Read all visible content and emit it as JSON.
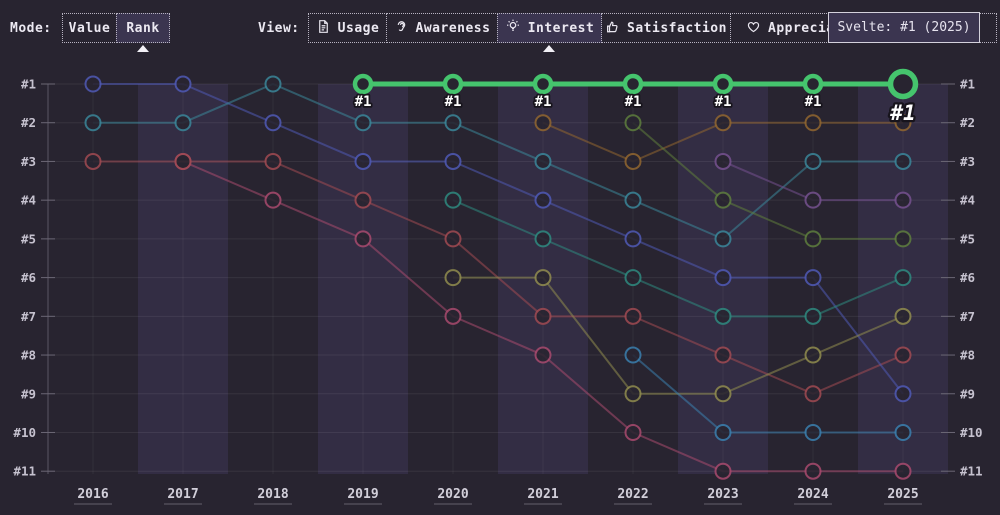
{
  "toolbar": {
    "mode_label": "Mode:",
    "modes": [
      {
        "label": "Value",
        "selected": false
      },
      {
        "label": "Rank",
        "selected": true
      }
    ],
    "view_label": "View:",
    "views": [
      {
        "label": "Usage",
        "icon": "document-icon",
        "selected": false
      },
      {
        "label": "Awareness",
        "icon": "ear-icon",
        "selected": false
      },
      {
        "label": "Interest",
        "icon": "lightbulb-icon",
        "selected": true
      },
      {
        "label": "Satisfaction",
        "icon": "thumbs-up-icon",
        "selected": false
      },
      {
        "label": "Appreciation",
        "icon": "heart-icon",
        "selected": false
      }
    ],
    "tooltip_text": "Svelte: #1 (2025)"
  },
  "colors": {
    "background": "#282430",
    "band": "#332d44",
    "selected_bg": "#3b3550",
    "accent_green": "#45c46d",
    "tooltip_border": "#d4d1dc"
  },
  "chart_data": {
    "type": "line",
    "subtype": "rank-bump",
    "mode": "Rank",
    "view": "Interest",
    "x": [
      "2016",
      "2017",
      "2018",
      "2019",
      "2020",
      "2021",
      "2022",
      "2023",
      "2024",
      "2025"
    ],
    "rank_labels": [
      "#1",
      "#2",
      "#3",
      "#4",
      "#5",
      "#6",
      "#7",
      "#8",
      "#9",
      "#10",
      "#11"
    ],
    "ylim": [
      1,
      11
    ],
    "grid": true,
    "highlighted_series": "Svelte",
    "highlight_tooltip": "Svelte: #1 (2025)",
    "series": [
      {
        "id": "pink",
        "color": "#a84a6e",
        "ranks": [
          null,
          3,
          4,
          5,
          7,
          8,
          10,
          11,
          11,
          11
        ]
      },
      {
        "id": "red",
        "color": "#a04a52",
        "ranks": [
          3,
          3,
          3,
          4,
          5,
          7,
          7,
          8,
          9,
          8
        ]
      },
      {
        "id": "indigo",
        "color": "#4f59b5",
        "ranks": [
          1,
          1,
          2,
          3,
          3,
          4,
          5,
          6,
          6,
          9
        ]
      },
      {
        "id": "teal",
        "color": "#3a8699",
        "ranks": [
          2,
          2,
          1,
          2,
          2,
          3,
          4,
          5,
          3,
          3
        ]
      },
      {
        "id": "seagreen",
        "color": "#2e8a7f",
        "ranks": [
          null,
          null,
          null,
          null,
          4,
          5,
          6,
          7,
          7,
          6
        ]
      },
      {
        "id": "olive",
        "color": "#908c4e",
        "ranks": [
          null,
          null,
          null,
          null,
          6,
          6,
          9,
          9,
          8,
          7
        ]
      },
      {
        "id": "amber",
        "color": "#91662f",
        "ranks": [
          null,
          null,
          null,
          null,
          null,
          2,
          3,
          2,
          2,
          2
        ]
      },
      {
        "id": "moss",
        "color": "#5e7e3d",
        "ranks": [
          null,
          null,
          null,
          null,
          null,
          null,
          2,
          4,
          5,
          5
        ]
      },
      {
        "id": "azure",
        "color": "#3a7fae",
        "ranks": [
          null,
          null,
          null,
          null,
          null,
          null,
          8,
          10,
          10,
          10
        ]
      },
      {
        "id": "purple",
        "color": "#75518f",
        "ranks": [
          null,
          null,
          null,
          null,
          null,
          null,
          null,
          3,
          4,
          4
        ]
      },
      {
        "id": "svelte",
        "label": "Svelte",
        "color": "#45c46d",
        "highlight": true,
        "point_label": "#1",
        "ranks": [
          null,
          null,
          null,
          1,
          1,
          1,
          1,
          1,
          1,
          1
        ]
      }
    ]
  }
}
